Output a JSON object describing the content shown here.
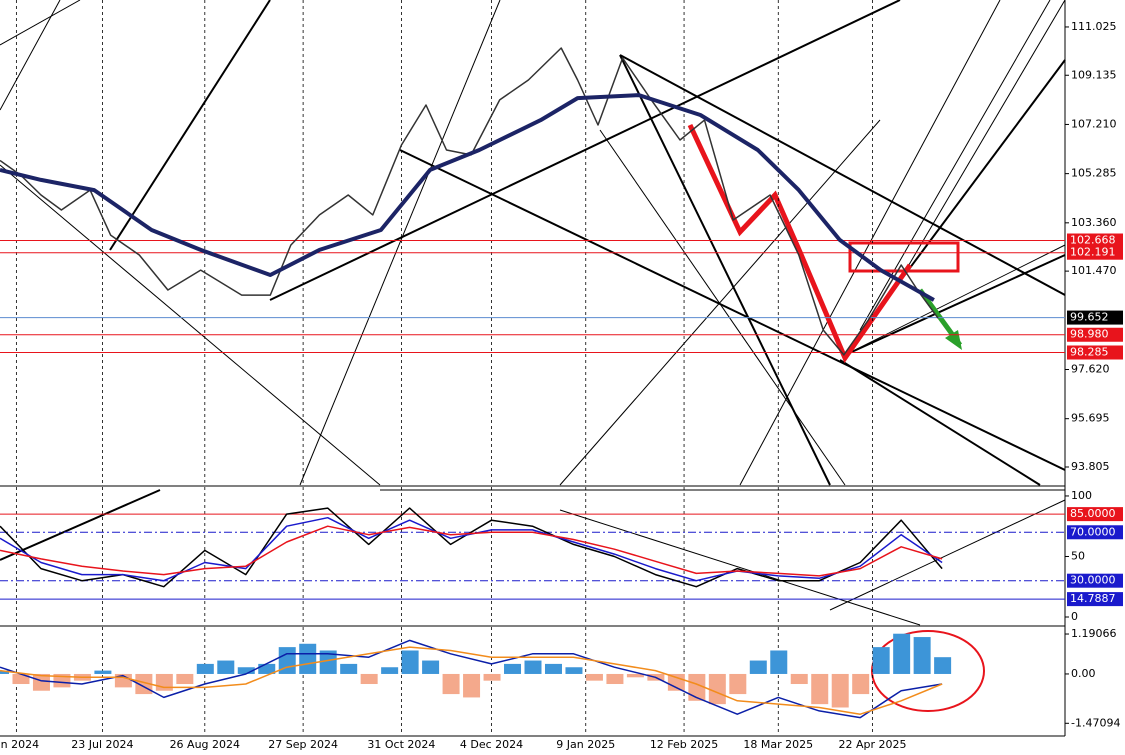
{
  "chart_data": [
    {
      "type": "line",
      "xlim": [
        0,
        260
      ],
      "xticks": [
        {
          "value": 4,
          "label": "un 2024"
        },
        {
          "value": 25,
          "label": "23 Jul 2024"
        },
        {
          "value": 50,
          "label": "26 Aug 2024"
        },
        {
          "value": 74,
          "label": "27 Sep 2024"
        },
        {
          "value": 98,
          "label": "31 Oct 2024"
        },
        {
          "value": 120,
          "label": "4 Dec 2024"
        },
        {
          "value": 143,
          "label": "9 Jan 2025"
        },
        {
          "value": 167,
          "label": "12 Feb 2025"
        },
        {
          "value": 190,
          "label": "18 Mar 2025"
        },
        {
          "value": 213,
          "label": "22 Apr 2025"
        }
      ],
      "ylim": [
        93.1,
        112.08
      ],
      "yticks": [
        111.025,
        109.135,
        {
          "value": 107.21,
          "label": "107.210"
        },
        105.285,
        {
          "value": 103.36,
          "label": "103.360"
        },
        {
          "value": 101.47,
          "label": "101.470"
        },
        {
          "value": 97.62,
          "label": "97.620"
        },
        95.695,
        93.805
      ],
      "levels": [
        {
          "value": 102.668,
          "label": "102.668",
          "color": "#e8141c"
        },
        {
          "value": 102.191,
          "label": "102.191",
          "color": "#e8141c"
        },
        {
          "value": 99.652,
          "label": "99.652",
          "color": "#5b8bd0",
          "box": "#000000"
        },
        {
          "value": 98.98,
          "label": "98.980",
          "color": "#e8141c"
        },
        {
          "value": 98.285,
          "label": "98.285",
          "color": "#e8141c"
        }
      ],
      "series": [
        {
          "color": "#333333",
          "x": [
            0,
            5,
            10,
            15,
            22,
            27,
            34,
            41,
            49,
            59,
            66,
            71,
            78,
            85,
            91,
            98,
            104,
            109,
            115,
            122,
            129,
            137,
            141,
            146,
            152,
            159,
            166,
            172,
            179,
            188,
            195,
            201,
            206,
            212,
            220,
            224,
            229
          ],
          "values": [
            105.8,
            105.23,
            104.45,
            103.86,
            104.64,
            102.88,
            102.1,
            100.73,
            101.51,
            100.53,
            100.53,
            102.49,
            103.67,
            104.45,
            103.67,
            106.4,
            107.97,
            106.21,
            106.02,
            108.17,
            108.95,
            110.2,
            108.95,
            107.19,
            109.81,
            108.17,
            106.6,
            107.38,
            103.47,
            104.45,
            102.1,
            99.16,
            98.19,
            99.56,
            101.71,
            100.73,
            99.63
          ]
        },
        {
          "color": "#1c2466",
          "width": 4,
          "x": [
            0,
            10,
            23,
            37,
            49,
            66,
            78,
            93,
            105,
            117,
            132,
            141,
            156,
            171,
            185,
            195,
            205,
            215,
            228
          ],
          "values": [
            105.43,
            105.04,
            104.64,
            103.08,
            102.3,
            101.32,
            102.3,
            103.08,
            105.43,
            106.21,
            107.38,
            108.24,
            108.36,
            107.58,
            106.21,
            104.64,
            102.69,
            101.51,
            100.34
          ]
        }
      ]
    },
    {
      "type": "line",
      "ylim": [
        -6.6,
        107.4
      ],
      "yticks": [
        100,
        50,
        0
      ],
      "levels": [
        {
          "value": 85,
          "label": "85.0000",
          "color": "#e8141c"
        },
        {
          "value": 70,
          "label": "70.0000",
          "color": "#1a1acc",
          "dash": true
        },
        {
          "value": 30,
          "label": "30.0000",
          "color": "#1a1acc",
          "dash": true
        },
        {
          "value": 14.7887,
          "label": "14.7887",
          "color": "#1a1acc"
        }
      ],
      "series": [
        {
          "color": "#000000",
          "x": [
            0,
            10,
            20,
            30,
            40,
            50,
            60,
            70,
            80,
            90,
            100,
            110,
            120,
            130,
            140,
            150,
            160,
            170,
            180,
            190,
            200,
            210,
            220,
            230
          ],
          "values": [
            75,
            40,
            30,
            35,
            25,
            55,
            35,
            85,
            90,
            60,
            90,
            60,
            80,
            75,
            60,
            50,
            35,
            25,
            40,
            30,
            30,
            45,
            80,
            40
          ]
        },
        {
          "color": "#1a1acc",
          "x": [
            0,
            10,
            20,
            30,
            40,
            50,
            60,
            70,
            80,
            90,
            100,
            110,
            120,
            130,
            140,
            150,
            160,
            170,
            180,
            190,
            200,
            210,
            220,
            230
          ],
          "values": [
            65,
            45,
            35,
            35,
            30,
            45,
            40,
            75,
            82,
            65,
            80,
            65,
            72,
            72,
            62,
            52,
            40,
            30,
            38,
            34,
            32,
            42,
            68,
            45
          ]
        },
        {
          "color": "#e8141c",
          "x": [
            0,
            10,
            20,
            30,
            40,
            50,
            60,
            70,
            80,
            90,
            100,
            110,
            120,
            130,
            140,
            150,
            160,
            170,
            180,
            190,
            200,
            210,
            220,
            230
          ],
          "values": [
            55,
            48,
            42,
            38,
            35,
            40,
            42,
            62,
            75,
            68,
            74,
            68,
            70,
            70,
            64,
            56,
            46,
            36,
            38,
            36,
            34,
            40,
            58,
            48
          ]
        }
      ]
    },
    {
      "type": "bar",
      "ylim": [
        -1.82,
        1.4
      ],
      "yticks": [
        1.19066,
        {
          "value": 0,
          "label": "0.00"
        },
        -1.47094
      ],
      "x": [
        0,
        5,
        10,
        15,
        20,
        25,
        30,
        35,
        40,
        45,
        50,
        55,
        60,
        65,
        70,
        75,
        80,
        85,
        90,
        95,
        100,
        105,
        110,
        115,
        120,
        125,
        130,
        135,
        140,
        145,
        150,
        155,
        160,
        165,
        170,
        175,
        180,
        185,
        190,
        195,
        200,
        205,
        210,
        215,
        220,
        225,
        230
      ],
      "values": [
        0.1,
        -0.3,
        -0.5,
        -0.4,
        -0.2,
        0.1,
        -0.4,
        -0.6,
        -0.5,
        -0.3,
        0.3,
        0.4,
        0.2,
        0.3,
        0.8,
        0.9,
        0.7,
        0.3,
        -0.3,
        0.2,
        0.7,
        0.4,
        -0.6,
        -0.7,
        -0.2,
        0.3,
        0.4,
        0.3,
        0.2,
        -0.2,
        -0.3,
        -0.1,
        -0.2,
        -0.5,
        -0.8,
        -0.9,
        -0.6,
        0.4,
        0.7,
        -0.3,
        -0.9,
        -1.0,
        -0.6,
        0.8,
        1.2,
        1.1,
        0.5
      ],
      "colors": {
        "positive": "#3d95d8",
        "negative": "#f4a98c"
      },
      "series": [
        {
          "color": "#0b1fa8",
          "x": [
            0,
            10,
            20,
            30,
            40,
            50,
            60,
            70,
            80,
            90,
            100,
            110,
            120,
            130,
            140,
            150,
            160,
            170,
            180,
            190,
            200,
            210,
            220,
            230
          ],
          "values": [
            0.2,
            -0.2,
            -0.3,
            -0.05,
            -0.7,
            -0.3,
            0.0,
            0.6,
            0.6,
            0.5,
            1.0,
            0.6,
            0.3,
            0.6,
            0.6,
            0.2,
            -0.1,
            -0.7,
            -1.2,
            -0.7,
            -1.1,
            -1.3,
            -0.5,
            -0.3
          ]
        },
        {
          "color": "#f28c1c",
          "x": [
            0,
            10,
            20,
            30,
            40,
            50,
            60,
            70,
            80,
            90,
            100,
            110,
            120,
            130,
            140,
            150,
            160,
            170,
            180,
            190,
            200,
            210,
            220,
            230
          ],
          "values": [
            0.1,
            -0.05,
            -0.1,
            -0.1,
            -0.4,
            -0.4,
            -0.3,
            0.2,
            0.4,
            0.6,
            0.8,
            0.7,
            0.5,
            0.5,
            0.5,
            0.3,
            0.1,
            -0.3,
            -0.8,
            -0.9,
            -1.0,
            -1.2,
            -0.8,
            -0.3
          ]
        }
      ]
    }
  ]
}
